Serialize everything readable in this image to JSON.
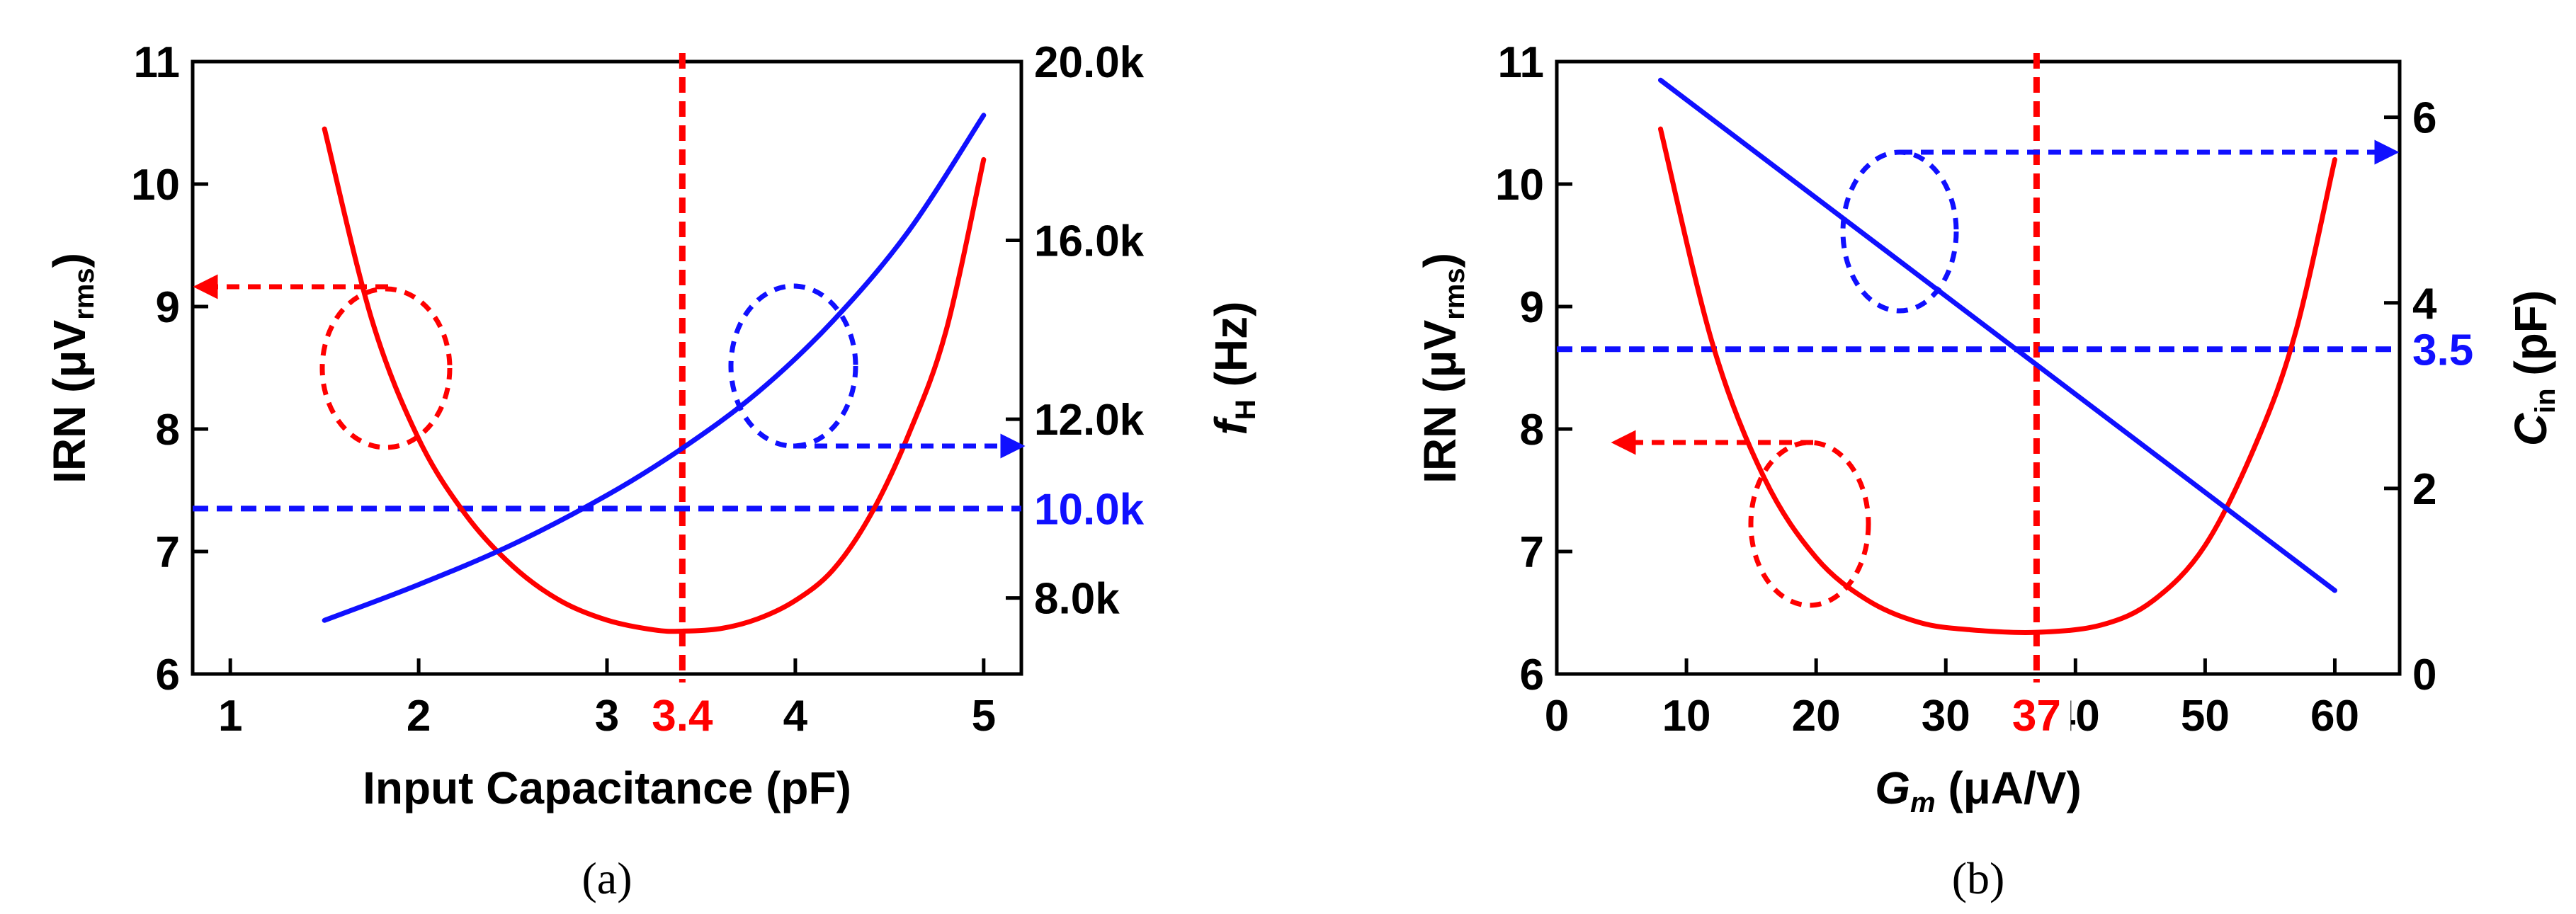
{
  "colors": {
    "red": "#ff0000",
    "blue": "#1010ff",
    "black": "#000000"
  },
  "chart_data": [
    {
      "panel_label": "(a)",
      "type": "line",
      "xlabel": "Input Capacitance (pF)",
      "ylabel_left": {
        "main": "IRN (μV",
        "sub": "rms",
        "close": ")"
      },
      "ylabel_right": {
        "main": "f",
        "sub": "H",
        "rest": " (Hz)"
      },
      "xlim": [
        0.8,
        5.2
      ],
      "xticks": [
        "1",
        "2",
        "3",
        "4",
        "5"
      ],
      "ylim_left": [
        6,
        11
      ],
      "yticks_left": [
        "6",
        "7",
        "8",
        "9",
        "10",
        "11"
      ],
      "ylim_right": [
        6300,
        20000
      ],
      "yticks_right": [
        {
          "value": 8000,
          "label": "8.0k"
        },
        {
          "value": 12000,
          "label": "12.0k"
        },
        {
          "value": 16000,
          "label": "16.0k"
        },
        {
          "value": 20000,
          "label": "20.0k"
        }
      ],
      "series": [
        {
          "name": "IRN",
          "axis": "left",
          "color": "red",
          "x": [
            1.5,
            1.75,
            2.0,
            2.25,
            2.5,
            2.75,
            3.0,
            3.25,
            3.4,
            3.6,
            3.8,
            4.0,
            4.2,
            4.4,
            4.6,
            4.8,
            5.0
          ],
          "y": [
            10.45,
            8.9,
            7.92,
            7.3,
            6.88,
            6.6,
            6.44,
            6.36,
            6.35,
            6.37,
            6.45,
            6.6,
            6.85,
            7.3,
            7.95,
            8.8,
            10.2
          ]
        },
        {
          "name": "f_H",
          "axis": "right",
          "color": "blue",
          "x": [
            1.5,
            2.0,
            2.5,
            3.0,
            3.4,
            3.8,
            4.2,
            4.6,
            5.0
          ],
          "y": [
            7500,
            8300,
            9200,
            10300,
            11350,
            12600,
            14200,
            16200,
            18800
          ]
        }
      ],
      "ref_lines": [
        {
          "orientation": "vertical",
          "x": 3.4,
          "label": "3.4",
          "color": "red"
        },
        {
          "orientation": "horizontal",
          "axis": "right",
          "y": 10000,
          "label": "10.0k",
          "color": "blue"
        }
      ],
      "annotations": [
        {
          "type": "ellipse-arrow",
          "target": "IRN",
          "arrow": "left",
          "color": "red"
        },
        {
          "type": "ellipse-arrow",
          "target": "f_H",
          "arrow": "right",
          "color": "blue"
        }
      ]
    },
    {
      "panel_label": "(b)",
      "type": "line",
      "xlabel": {
        "main": "G",
        "sub": "m",
        "rest": " (μA/V)"
      },
      "ylabel_left": {
        "main": "IRN (μV",
        "sub": "rms",
        "close": ")"
      },
      "ylabel_right": {
        "main": "C",
        "sub": "in",
        "rest": " (pF)"
      },
      "xlim": [
        0,
        65
      ],
      "xticks": [
        "0",
        "10",
        "20",
        "30",
        "40",
        "50",
        "60"
      ],
      "ylim_left": [
        6,
        11
      ],
      "yticks_left": [
        "6",
        "7",
        "8",
        "9",
        "10",
        "11"
      ],
      "ylim_right": [
        0,
        6.6
      ],
      "yticks_right": [
        {
          "value": 0,
          "label": "0"
        },
        {
          "value": 2,
          "label": "2"
        },
        {
          "value": 4,
          "label": "4"
        },
        {
          "value": 6,
          "label": "6"
        }
      ],
      "series": [
        {
          "name": "IRN",
          "axis": "left",
          "color": "red",
          "x": [
            8,
            12,
            16,
            20,
            24,
            28,
            32,
            37,
            42,
            46,
            50,
            54,
            57,
            60
          ],
          "y": [
            10.45,
            8.7,
            7.6,
            6.95,
            6.6,
            6.42,
            6.36,
            6.34,
            6.4,
            6.6,
            7.05,
            7.9,
            8.8,
            10.2
          ]
        },
        {
          "name": "C_in",
          "axis": "right",
          "color": "blue",
          "x": [
            8,
            60
          ],
          "y": [
            6.4,
            0.9
          ]
        }
      ],
      "ref_lines": [
        {
          "orientation": "vertical",
          "x": 37,
          "label": "37",
          "color": "red"
        },
        {
          "orientation": "horizontal",
          "axis": "right",
          "y": 3.5,
          "label": "3.5",
          "color": "blue"
        }
      ],
      "annotations": [
        {
          "type": "ellipse-arrow",
          "target": "C_in",
          "arrow": "right",
          "color": "blue"
        },
        {
          "type": "ellipse-arrow",
          "target": "IRN",
          "arrow": "left",
          "color": "red"
        }
      ]
    }
  ]
}
